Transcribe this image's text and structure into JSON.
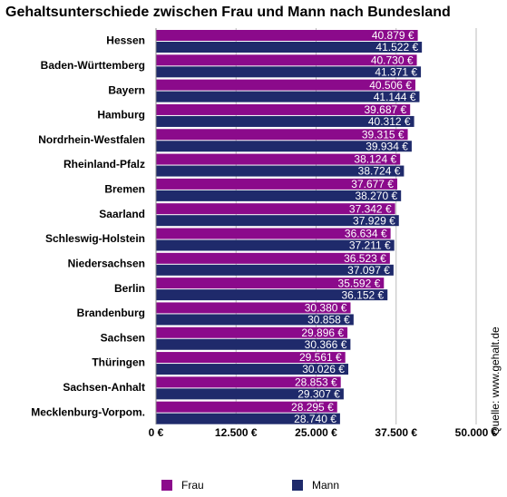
{
  "chart_data": {
    "type": "hbar",
    "title": "Gehaltsunterschiede zwischen Frau und Mann nach Bundesland",
    "source": "Quelle: www.gehalt.de",
    "categories": [
      "Hessen",
      "Baden-Württemberg",
      "Bayern",
      "Hamburg",
      "Nordrhein-Westfalen",
      "Rheinland-Pfalz",
      "Bremen",
      "Saarland",
      "Schleswig-Holstein",
      "Niedersachsen",
      "Berlin",
      "Brandenburg",
      "Sachsen",
      "Thüringen",
      "Sachsen-Anhalt",
      "Mecklenburg-Vorpom."
    ],
    "series": [
      {
        "name": "Frau",
        "color": "#8b0a8b",
        "values": [
          40879,
          40730,
          40506,
          39687,
          39315,
          38124,
          37677,
          37342,
          36634,
          36523,
          35592,
          30380,
          29896,
          29561,
          28853,
          28295
        ],
        "value_labels": [
          "40.879 €",
          "40.730 €",
          "40.506 €",
          "39.687 €",
          "39.315 €",
          "38.124 €",
          "37.677 €",
          "37.342 €",
          "36.634 €",
          "36.523 €",
          "35.592 €",
          "30.380 €",
          "29.896 €",
          "29.561 €",
          "28.853 €",
          "28.295 €"
        ]
      },
      {
        "name": "Mann",
        "color": "#1f2a6b",
        "values": [
          41522,
          41371,
          41144,
          40312,
          39934,
          38724,
          38270,
          37929,
          37211,
          37097,
          36152,
          30858,
          30366,
          30026,
          29307,
          28740
        ],
        "value_labels": [
          "41.522 €",
          "41.371 €",
          "41.144 €",
          "40.312 €",
          "39.934 €",
          "38.724 €",
          "38.270 €",
          "37.929 €",
          "37.211 €",
          "37.097 €",
          "36.152 €",
          "30.858 €",
          "30.366 €",
          "30.026 €",
          "29.307 €",
          "28.740 €"
        ]
      }
    ],
    "xlim": [
      0,
      50000
    ],
    "xticks": [
      {
        "value": 0,
        "label": "0 €"
      },
      {
        "value": 12500,
        "label": "12.500 €"
      },
      {
        "value": 25000,
        "label": "25.000 €"
      },
      {
        "value": 37500,
        "label": "37.500 €"
      },
      {
        "value": 50000,
        "label": "50.000 €"
      }
    ],
    "grid": true
  }
}
